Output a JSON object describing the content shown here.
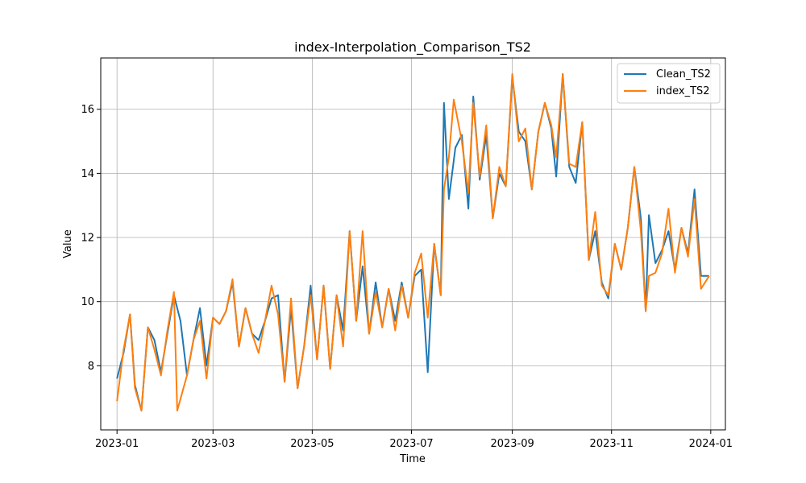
{
  "chart_data": {
    "type": "line",
    "title": "index-Interpolation_Comparison_TS2",
    "xlabel": "Time",
    "ylabel": "Value",
    "x_range": [
      "2022-12-22",
      "2024-01-10"
    ],
    "ylim": [
      6.0,
      17.6
    ],
    "x_ticks": [
      {
        "date": "2023-01-01",
        "label": "2023-01"
      },
      {
        "date": "2023-03-01",
        "label": "2023-03"
      },
      {
        "date": "2023-05-01",
        "label": "2023-05"
      },
      {
        "date": "2023-07-01",
        "label": "2023-07"
      },
      {
        "date": "2023-09-01",
        "label": "2023-09"
      },
      {
        "date": "2023-11-01",
        "label": "2023-11"
      },
      {
        "date": "2024-01-01",
        "label": "2024-01"
      }
    ],
    "y_ticks": [
      {
        "value": 8,
        "label": "8"
      },
      {
        "value": 10,
        "label": "10"
      },
      {
        "value": 12,
        "label": "12"
      },
      {
        "value": 14,
        "label": "14"
      },
      {
        "value": 16,
        "label": "16"
      }
    ],
    "grid": true,
    "legend_position": "top-right",
    "series": [
      {
        "name": "Clean_TS2",
        "color": "#1f77b4",
        "points": [
          [
            "2023-01-01",
            7.6
          ],
          [
            "2023-01-05",
            8.4
          ],
          [
            "2023-01-09",
            9.6
          ],
          [
            "2023-01-12",
            7.4
          ],
          [
            "2023-01-16",
            6.6
          ],
          [
            "2023-01-20",
            9.2
          ],
          [
            "2023-01-24",
            8.8
          ],
          [
            "2023-01-28",
            7.8
          ],
          [
            "2023-02-01",
            9.0
          ],
          [
            "2023-02-05",
            10.2
          ],
          [
            "2023-02-09",
            9.4
          ],
          [
            "2023-02-13",
            7.7
          ],
          [
            "2023-02-17",
            8.8
          ],
          [
            "2023-02-21",
            9.8
          ],
          [
            "2023-02-25",
            8.0
          ],
          [
            "2023-03-01",
            9.5
          ],
          [
            "2023-03-05",
            9.3
          ],
          [
            "2023-03-09",
            9.7
          ],
          [
            "2023-03-13",
            10.6
          ],
          [
            "2023-03-17",
            8.6
          ],
          [
            "2023-03-21",
            9.8
          ],
          [
            "2023-03-25",
            9.0
          ],
          [
            "2023-03-29",
            8.8
          ],
          [
            "2023-04-02",
            9.4
          ],
          [
            "2023-04-06",
            10.1
          ],
          [
            "2023-04-10",
            10.2
          ],
          [
            "2023-04-14",
            7.5
          ],
          [
            "2023-04-18",
            9.8
          ],
          [
            "2023-04-22",
            7.3
          ],
          [
            "2023-04-26",
            8.6
          ],
          [
            "2023-04-30",
            10.5
          ],
          [
            "2023-05-04",
            8.2
          ],
          [
            "2023-05-08",
            10.5
          ],
          [
            "2023-05-12",
            7.9
          ],
          [
            "2023-05-16",
            10.2
          ],
          [
            "2023-05-20",
            9.1
          ],
          [
            "2023-05-24",
            12.2
          ],
          [
            "2023-05-28",
            9.4
          ],
          [
            "2023-06-01",
            11.1
          ],
          [
            "2023-06-05",
            9.0
          ],
          [
            "2023-06-09",
            10.6
          ],
          [
            "2023-06-13",
            9.2
          ],
          [
            "2023-06-17",
            10.4
          ],
          [
            "2023-06-21",
            9.4
          ],
          [
            "2023-06-25",
            10.6
          ],
          [
            "2023-06-29",
            9.5
          ],
          [
            "2023-07-03",
            10.8
          ],
          [
            "2023-07-07",
            11.0
          ],
          [
            "2023-07-11",
            7.8
          ],
          [
            "2023-07-15",
            11.8
          ],
          [
            "2023-07-19",
            10.2
          ],
          [
            "2023-07-21",
            16.2
          ],
          [
            "2023-07-24",
            13.2
          ],
          [
            "2023-07-28",
            14.8
          ],
          [
            "2023-08-01",
            15.2
          ],
          [
            "2023-08-05",
            12.9
          ],
          [
            "2023-08-08",
            16.4
          ],
          [
            "2023-08-12",
            13.8
          ],
          [
            "2023-08-16",
            15.2
          ],
          [
            "2023-08-20",
            12.6
          ],
          [
            "2023-08-24",
            14.0
          ],
          [
            "2023-08-28",
            13.6
          ],
          [
            "2023-09-01",
            17.0
          ],
          [
            "2023-09-05",
            15.3
          ],
          [
            "2023-09-09",
            15.0
          ],
          [
            "2023-09-13",
            13.5
          ],
          [
            "2023-09-17",
            15.3
          ],
          [
            "2023-09-21",
            16.2
          ],
          [
            "2023-09-25",
            15.4
          ],
          [
            "2023-09-28",
            13.9
          ],
          [
            "2023-10-02",
            17.1
          ],
          [
            "2023-10-06",
            14.2
          ],
          [
            "2023-10-10",
            13.7
          ],
          [
            "2023-10-14",
            15.6
          ],
          [
            "2023-10-18",
            11.3
          ],
          [
            "2023-10-22",
            12.2
          ],
          [
            "2023-10-26",
            10.6
          ],
          [
            "2023-10-30",
            10.1
          ],
          [
            "2023-11-03",
            11.8
          ],
          [
            "2023-11-07",
            11.0
          ],
          [
            "2023-11-11",
            12.3
          ],
          [
            "2023-11-15",
            14.2
          ],
          [
            "2023-11-19",
            12.6
          ],
          [
            "2023-11-22",
            9.7
          ],
          [
            "2023-11-24",
            12.7
          ],
          [
            "2023-11-28",
            11.2
          ],
          [
            "2023-12-02",
            11.6
          ],
          [
            "2023-12-06",
            12.2
          ],
          [
            "2023-12-10",
            11.0
          ],
          [
            "2023-12-14",
            12.3
          ],
          [
            "2023-12-18",
            11.5
          ],
          [
            "2023-12-22",
            13.5
          ],
          [
            "2023-12-26",
            10.8
          ],
          [
            "2023-12-31",
            10.8
          ]
        ]
      },
      {
        "name": "index_TS2",
        "color": "#ff7f0e",
        "points": [
          [
            "2023-01-01",
            6.9
          ],
          [
            "2023-01-05",
            8.5
          ],
          [
            "2023-01-09",
            9.6
          ],
          [
            "2023-01-12",
            7.3
          ],
          [
            "2023-01-16",
            6.6
          ],
          [
            "2023-01-20",
            9.2
          ],
          [
            "2023-01-24",
            8.5
          ],
          [
            "2023-01-28",
            7.7
          ],
          [
            "2023-02-01",
            9.1
          ],
          [
            "2023-02-05",
            10.3
          ],
          [
            "2023-02-07",
            6.6
          ],
          [
            "2023-02-13",
            7.7
          ],
          [
            "2023-02-17",
            8.8
          ],
          [
            "2023-02-21",
            9.4
          ],
          [
            "2023-02-25",
            7.6
          ],
          [
            "2023-03-01",
            9.5
          ],
          [
            "2023-03-05",
            9.3
          ],
          [
            "2023-03-09",
            9.7
          ],
          [
            "2023-03-13",
            10.7
          ],
          [
            "2023-03-17",
            8.6
          ],
          [
            "2023-03-21",
            9.8
          ],
          [
            "2023-03-25",
            9.0
          ],
          [
            "2023-03-29",
            8.4
          ],
          [
            "2023-04-02",
            9.4
          ],
          [
            "2023-04-06",
            10.5
          ],
          [
            "2023-04-10",
            9.6
          ],
          [
            "2023-04-14",
            7.5
          ],
          [
            "2023-04-18",
            10.1
          ],
          [
            "2023-04-22",
            7.3
          ],
          [
            "2023-04-26",
            8.6
          ],
          [
            "2023-04-30",
            10.2
          ],
          [
            "2023-05-04",
            8.2
          ],
          [
            "2023-05-08",
            10.5
          ],
          [
            "2023-05-12",
            7.9
          ],
          [
            "2023-05-16",
            10.2
          ],
          [
            "2023-05-20",
            8.6
          ],
          [
            "2023-05-24",
            12.2
          ],
          [
            "2023-05-28",
            9.4
          ],
          [
            "2023-06-01",
            12.2
          ],
          [
            "2023-06-05",
            9.0
          ],
          [
            "2023-06-09",
            10.3
          ],
          [
            "2023-06-13",
            9.2
          ],
          [
            "2023-06-17",
            10.4
          ],
          [
            "2023-06-21",
            9.1
          ],
          [
            "2023-06-25",
            10.5
          ],
          [
            "2023-06-29",
            9.5
          ],
          [
            "2023-07-03",
            10.9
          ],
          [
            "2023-07-07",
            11.5
          ],
          [
            "2023-07-11",
            9.5
          ],
          [
            "2023-07-15",
            11.8
          ],
          [
            "2023-07-19",
            10.2
          ],
          [
            "2023-07-21",
            13.5
          ],
          [
            "2023-07-24",
            14.5
          ],
          [
            "2023-07-27",
            16.3
          ],
          [
            "2023-08-01",
            15.0
          ],
          [
            "2023-08-05",
            13.4
          ],
          [
            "2023-08-08",
            16.2
          ],
          [
            "2023-08-12",
            13.9
          ],
          [
            "2023-08-16",
            15.5
          ],
          [
            "2023-08-20",
            12.6
          ],
          [
            "2023-08-24",
            14.2
          ],
          [
            "2023-08-28",
            13.6
          ],
          [
            "2023-09-01",
            17.1
          ],
          [
            "2023-09-05",
            15.0
          ],
          [
            "2023-09-09",
            15.4
          ],
          [
            "2023-09-13",
            13.5
          ],
          [
            "2023-09-17",
            15.3
          ],
          [
            "2023-09-21",
            16.2
          ],
          [
            "2023-09-25",
            15.5
          ],
          [
            "2023-09-28",
            14.5
          ],
          [
            "2023-10-02",
            17.1
          ],
          [
            "2023-10-06",
            14.3
          ],
          [
            "2023-10-10",
            14.2
          ],
          [
            "2023-10-14",
            15.6
          ],
          [
            "2023-10-18",
            11.3
          ],
          [
            "2023-10-22",
            12.8
          ],
          [
            "2023-10-26",
            10.5
          ],
          [
            "2023-10-30",
            10.2
          ],
          [
            "2023-11-03",
            11.8
          ],
          [
            "2023-11-07",
            11.0
          ],
          [
            "2023-11-11",
            12.3
          ],
          [
            "2023-11-15",
            14.2
          ],
          [
            "2023-11-19",
            12.2
          ],
          [
            "2023-11-22",
            9.7
          ],
          [
            "2023-11-24",
            10.8
          ],
          [
            "2023-11-28",
            10.9
          ],
          [
            "2023-12-02",
            11.5
          ],
          [
            "2023-12-06",
            12.9
          ],
          [
            "2023-12-10",
            10.9
          ],
          [
            "2023-12-14",
            12.3
          ],
          [
            "2023-12-18",
            11.4
          ],
          [
            "2023-12-22",
            13.2
          ],
          [
            "2023-12-26",
            10.4
          ],
          [
            "2023-12-31",
            10.8
          ]
        ]
      }
    ]
  }
}
